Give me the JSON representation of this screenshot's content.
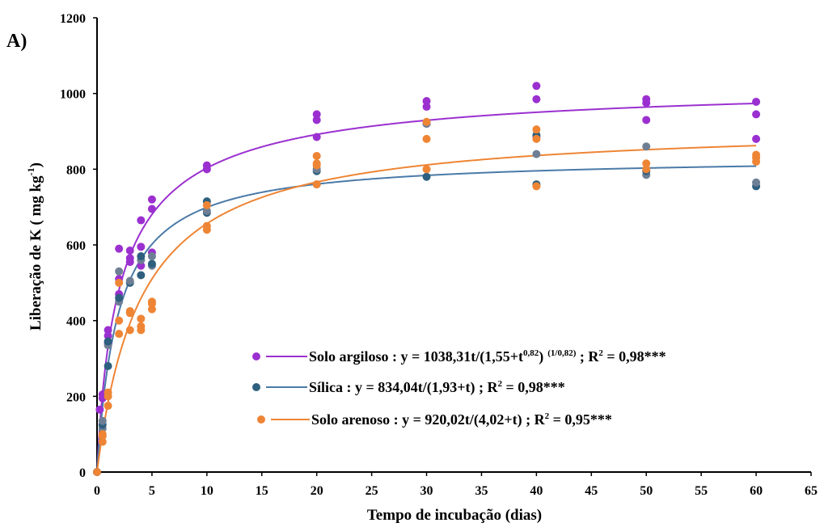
{
  "chart_data": {
    "type": "scatter",
    "panel_label": "A)",
    "title": "",
    "xlabel": "Tempo de incubação (dias)",
    "ylabel": "Liberação de K ( mg kg",
    "ylabel_sup": "-1",
    "ylabel_end": ")",
    "xlim": [
      0,
      65
    ],
    "ylim": [
      0,
      1200
    ],
    "xticks": [
      0,
      5,
      10,
      15,
      20,
      25,
      30,
      35,
      40,
      45,
      50,
      55,
      60,
      65
    ],
    "yticks": [
      0,
      200,
      400,
      600,
      800,
      1000,
      1200
    ],
    "grid": false,
    "legend_position": "lower-right",
    "series": [
      {
        "name": "Solo argiloso",
        "color": "#9b30d0",
        "line_color": "#9b30d0",
        "equation": {
          "prefix": "Solo argiloso : y = 1038,31t/(1,55+t",
          "sup1": "0,82",
          "mid": ")",
          "sup2": "(1/0,82)",
          "suffix": " ; R",
          "sup3": "2",
          "end": " = 0,98***"
        },
        "model": {
          "a": 1038.31,
          "b": 1.55,
          "n": 0.82
        },
        "points": [
          [
            0,
            0
          ],
          [
            0.25,
            165
          ],
          [
            0.5,
            195
          ],
          [
            0.5,
            205
          ],
          [
            1,
            340
          ],
          [
            1,
            360
          ],
          [
            1,
            375
          ],
          [
            2,
            470
          ],
          [
            2,
            510
          ],
          [
            2,
            590
          ],
          [
            3,
            555
          ],
          [
            3,
            565
          ],
          [
            3,
            585
          ],
          [
            4,
            545
          ],
          [
            4,
            595
          ],
          [
            4,
            665
          ],
          [
            5,
            580
          ],
          [
            5,
            695
          ],
          [
            5,
            720
          ],
          [
            10,
            800
          ],
          [
            10,
            810
          ],
          [
            20,
            885
          ],
          [
            20,
            930
          ],
          [
            20,
            945
          ],
          [
            30,
            920
          ],
          [
            30,
            965
          ],
          [
            30,
            980
          ],
          [
            40,
            885
          ],
          [
            40,
            985
          ],
          [
            40,
            1020
          ],
          [
            50,
            930
          ],
          [
            50,
            975
          ],
          [
            50,
            985
          ],
          [
            60,
            880
          ],
          [
            60,
            945
          ],
          [
            60,
            978
          ]
        ]
      },
      {
        "name": "Sílica",
        "color": "#2e5f7f",
        "line_color": "#4a7aa8",
        "point_color_alt": "#6e7f95",
        "equation": {
          "prefix": "Sílica : y = 834,04t/(1,93+t) ; R",
          "sup3": "2",
          "end": " = 0,98***"
        },
        "model": {
          "a": 834.04,
          "b": 1.93
        },
        "points": [
          [
            0,
            0
          ],
          [
            0.5,
            115
          ],
          [
            0.5,
            125
          ],
          [
            0.5,
            135
          ],
          [
            1,
            280
          ],
          [
            1,
            335
          ],
          [
            1,
            345
          ],
          [
            2,
            450
          ],
          [
            2,
            460
          ],
          [
            2,
            530
          ],
          [
            3,
            500
          ],
          [
            3,
            505
          ],
          [
            4,
            520
          ],
          [
            4,
            560
          ],
          [
            4,
            570
          ],
          [
            5,
            545
          ],
          [
            5,
            550
          ],
          [
            5,
            570
          ],
          [
            10,
            685
          ],
          [
            10,
            690
          ],
          [
            10,
            715
          ],
          [
            20,
            760
          ],
          [
            20,
            795
          ],
          [
            20,
            800
          ],
          [
            30,
            780
          ],
          [
            30,
            920
          ],
          [
            40,
            760
          ],
          [
            40,
            840
          ],
          [
            40,
            890
          ],
          [
            50,
            785
          ],
          [
            50,
            795
          ],
          [
            50,
            860
          ],
          [
            60,
            755
          ],
          [
            60,
            765
          ]
        ]
      },
      {
        "name": "Solo arenoso",
        "color": "#ee8535",
        "line_color": "#ee8535",
        "equation": {
          "prefix": "Solo arenoso : y = 920,02t/(4,02+t) ; R",
          "sup3": "2",
          "end": " = 0,95***"
        },
        "model": {
          "a": 920.02,
          "b": 4.02
        },
        "points": [
          [
            0,
            0
          ],
          [
            0.5,
            80
          ],
          [
            0.5,
            95
          ],
          [
            0.5,
            100
          ],
          [
            1,
            175
          ],
          [
            1,
            200
          ],
          [
            1,
            210
          ],
          [
            2,
            365
          ],
          [
            2,
            400
          ],
          [
            2,
            500
          ],
          [
            3,
            375
          ],
          [
            3,
            420
          ],
          [
            3,
            425
          ],
          [
            4,
            375
          ],
          [
            4,
            385
          ],
          [
            4,
            405
          ],
          [
            5,
            430
          ],
          [
            5,
            445
          ],
          [
            5,
            450
          ],
          [
            10,
            640
          ],
          [
            10,
            650
          ],
          [
            10,
            705
          ],
          [
            20,
            760
          ],
          [
            20,
            810
          ],
          [
            20,
            815
          ],
          [
            20,
            835
          ],
          [
            30,
            800
          ],
          [
            30,
            880
          ],
          [
            30,
            925
          ],
          [
            40,
            755
          ],
          [
            40,
            880
          ],
          [
            40,
            905
          ],
          [
            50,
            800
          ],
          [
            50,
            815
          ],
          [
            60,
            820
          ],
          [
            60,
            830
          ],
          [
            60,
            838
          ]
        ]
      }
    ]
  }
}
